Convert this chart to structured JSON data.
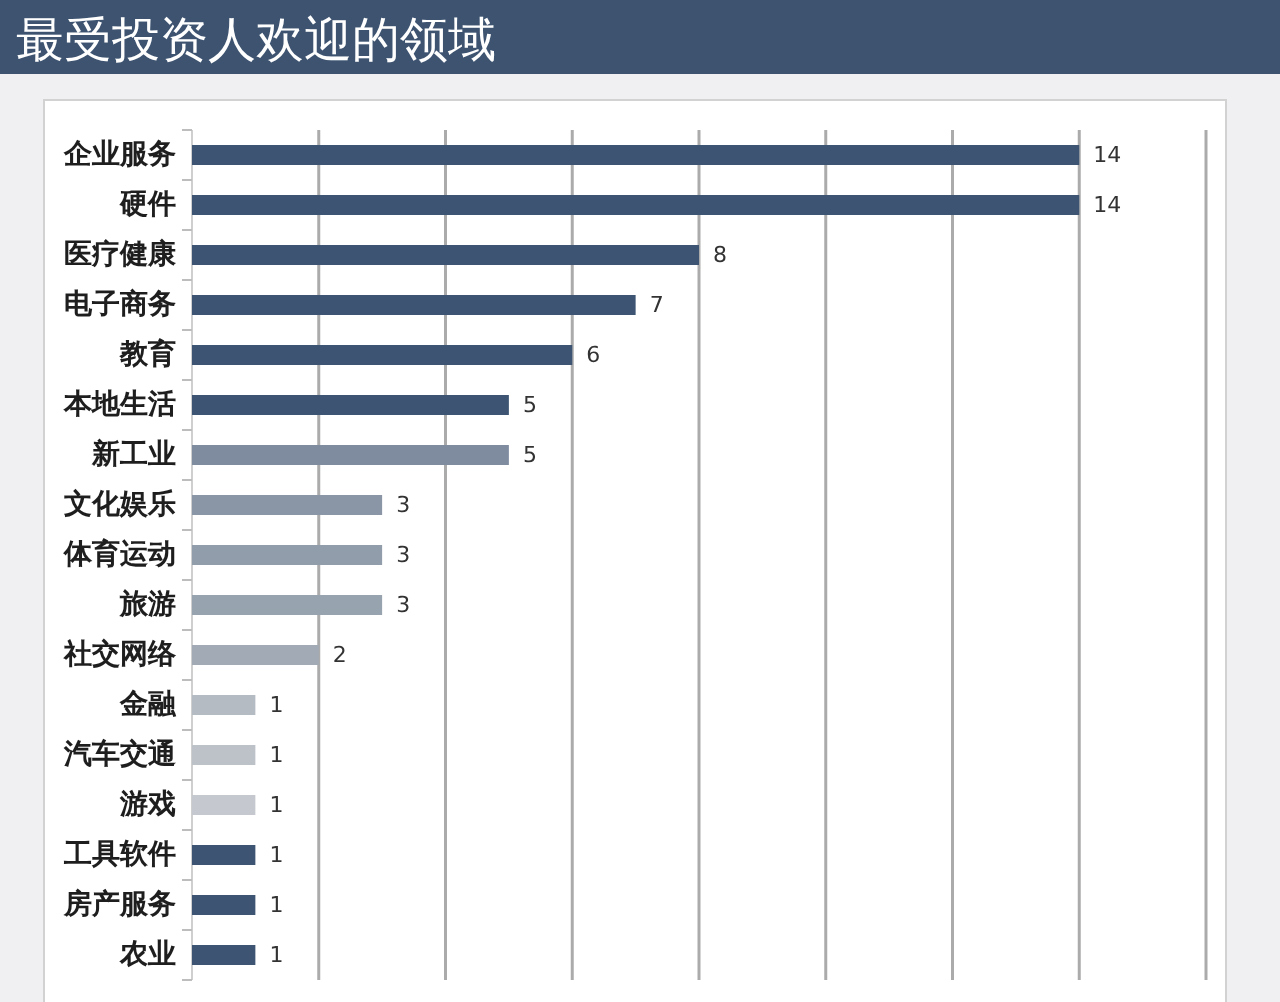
{
  "chart_data": {
    "type": "bar",
    "orientation": "horizontal",
    "title": "最受投资人欢迎的领域",
    "categories": [
      "企业服务",
      "硬件",
      "医疗健康",
      "电子商务",
      "教育",
      "本地生活",
      "新工业",
      "文化娱乐",
      "体育运动",
      "旅游",
      "社交网络",
      "金融",
      "汽车交通",
      "游戏",
      "工具软件",
      "房产服务",
      "农业"
    ],
    "values": [
      14,
      14,
      8,
      7,
      6,
      5,
      5,
      3,
      3,
      3,
      2,
      1,
      1,
      1,
      1,
      1,
      1
    ],
    "colors": [
      "#3d5573",
      "#3d5573",
      "#3d5573",
      "#3d5573",
      "#3d5573",
      "#3d5573",
      "#7f8ca0",
      "#8a96a6",
      "#929dab",
      "#98a3b0",
      "#a2aab5",
      "#b5bbc3",
      "#bdc2c9",
      "#c5c9cf",
      "#3d5573",
      "#3d5573",
      "#3d5573"
    ],
    "data_labels": true,
    "xlim": [
      0,
      16
    ],
    "xticks": [
      {
        "value": 2,
        "label": null
      },
      {
        "value": 4,
        "label": null
      },
      {
        "value": 6,
        "label": null
      },
      {
        "value": 8,
        "label": null
      },
      {
        "value": 10,
        "label": null
      },
      {
        "value": 12,
        "label": null
      },
      {
        "value": 14,
        "label": null
      },
      {
        "value": 16,
        "label": null
      }
    ],
    "grid": "x",
    "tick_labels": "y"
  }
}
